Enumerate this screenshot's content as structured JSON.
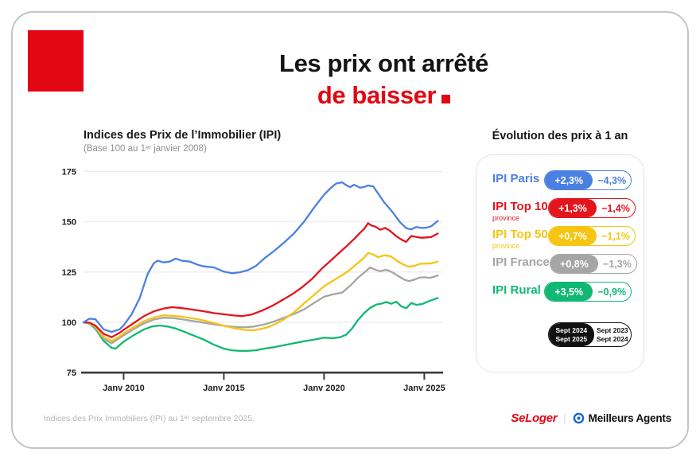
{
  "title": {
    "line1": "Les prix ont arrêté",
    "line2": "de baisser",
    "accent_color": "#e30613"
  },
  "chart_data": {
    "type": "line",
    "title": "Indices des Prix de l’Immobilier (IPI)",
    "subtitle": "(Base 100 au 1ᵉʳ janvier 2008)",
    "grid": true,
    "legend_position": "right-panel",
    "x_axis": {
      "ticks": [
        2010,
        2015,
        2020,
        2025
      ],
      "tick_labels": [
        "Janv 2010",
        "Janv 2015",
        "Janv 2020",
        "Janv 2025"
      ],
      "range": [
        2008,
        2025.75
      ]
    },
    "y_axis": {
      "ticks": [
        175,
        150,
        125,
        100,
        75
      ],
      "range": [
        75,
        180
      ]
    },
    "series": [
      {
        "name": "IPI Paris",
        "color": "#4a80e2",
        "points": [
          [
            2008,
            100
          ],
          [
            2008.3,
            101.8
          ],
          [
            2008.6,
            101.5
          ],
          [
            2009,
            96.5
          ],
          [
            2009.4,
            95.2
          ],
          [
            2009.8,
            96.5
          ],
          [
            2010,
            98.5
          ],
          [
            2010.4,
            104
          ],
          [
            2010.8,
            112
          ],
          [
            2011.2,
            124
          ],
          [
            2011.5,
            129.3
          ],
          [
            2011.7,
            130.6
          ],
          [
            2012,
            129.8
          ],
          [
            2012.3,
            130.2
          ],
          [
            2012.6,
            131.7
          ],
          [
            2012.9,
            130.6
          ],
          [
            2013.3,
            130.2
          ],
          [
            2013.7,
            128.6
          ],
          [
            2014,
            127.8
          ],
          [
            2014.5,
            127.3
          ],
          [
            2015,
            125.2
          ],
          [
            2015.4,
            124.4
          ],
          [
            2015.8,
            124.9
          ],
          [
            2016.2,
            125.9
          ],
          [
            2016.6,
            128
          ],
          [
            2017,
            131.6
          ],
          [
            2017.5,
            135.4
          ],
          [
            2018,
            139.6
          ],
          [
            2018.5,
            144.2
          ],
          [
            2019,
            150
          ],
          [
            2019.5,
            157
          ],
          [
            2020,
            163.4
          ],
          [
            2020.3,
            166.5
          ],
          [
            2020.6,
            169
          ],
          [
            2020.9,
            169.6
          ],
          [
            2021.1,
            168.2
          ],
          [
            2021.3,
            167.2
          ],
          [
            2021.5,
            168.4
          ],
          [
            2021.8,
            166.9
          ],
          [
            2022,
            167.3
          ],
          [
            2022.2,
            168
          ],
          [
            2022.45,
            167.6
          ],
          [
            2022.7,
            164
          ],
          [
            2023,
            159.6
          ],
          [
            2023.4,
            155
          ],
          [
            2023.8,
            149.6
          ],
          [
            2024.1,
            146.8
          ],
          [
            2024.35,
            146.2
          ],
          [
            2024.6,
            147.4
          ],
          [
            2024.85,
            146.9
          ],
          [
            2025.1,
            147
          ],
          [
            2025.35,
            147.8
          ],
          [
            2025.67,
            150.4
          ]
        ]
      },
      {
        "name": "IPI Top 10 province",
        "color": "#e3151d",
        "points": [
          [
            2008,
            100
          ],
          [
            2008.3,
            99.8
          ],
          [
            2008.6,
            98.3
          ],
          [
            2009,
            94.3
          ],
          [
            2009.4,
            92.6
          ],
          [
            2009.8,
            94.8
          ],
          [
            2010,
            96.3
          ],
          [
            2010.5,
            99.6
          ],
          [
            2011,
            103
          ],
          [
            2011.5,
            105.4
          ],
          [
            2012,
            106.9
          ],
          [
            2012.4,
            107.5
          ],
          [
            2012.8,
            107.2
          ],
          [
            2013.2,
            106.7
          ],
          [
            2013.6,
            106.1
          ],
          [
            2014,
            105.5
          ],
          [
            2014.5,
            104.6
          ],
          [
            2015,
            104
          ],
          [
            2015.5,
            103.4
          ],
          [
            2015.9,
            103.1
          ],
          [
            2016.4,
            103.9
          ],
          [
            2016.9,
            105.8
          ],
          [
            2017.4,
            108.1
          ],
          [
            2017.9,
            111
          ],
          [
            2018.4,
            113.9
          ],
          [
            2018.9,
            117.4
          ],
          [
            2019.4,
            121.6
          ],
          [
            2019.9,
            126.8
          ],
          [
            2020.3,
            130.4
          ],
          [
            2020.7,
            134
          ],
          [
            2021.1,
            137.6
          ],
          [
            2021.5,
            141.4
          ],
          [
            2021.8,
            144.6
          ],
          [
            2022,
            146.4
          ],
          [
            2022.2,
            149.3
          ],
          [
            2022.35,
            148.2
          ],
          [
            2022.55,
            147.6
          ],
          [
            2022.8,
            146
          ],
          [
            2023.05,
            146.9
          ],
          [
            2023.3,
            145.4
          ],
          [
            2023.6,
            142.8
          ],
          [
            2023.9,
            140.9
          ],
          [
            2024.1,
            140
          ],
          [
            2024.35,
            142.9
          ],
          [
            2024.6,
            142.4
          ],
          [
            2024.85,
            142
          ],
          [
            2025.1,
            142.2
          ],
          [
            2025.35,
            142.4
          ],
          [
            2025.67,
            144.1
          ]
        ]
      },
      {
        "name": "IPI Top 50 province",
        "color": "#f6c412",
        "points": [
          [
            2008,
            100
          ],
          [
            2008.3,
            99.6
          ],
          [
            2008.6,
            97.8
          ],
          [
            2009,
            92.8
          ],
          [
            2009.4,
            90.7
          ],
          [
            2009.8,
            93
          ],
          [
            2010,
            94.6
          ],
          [
            2010.5,
            97.6
          ],
          [
            2011,
            100.5
          ],
          [
            2011.5,
            102.4
          ],
          [
            2012,
            103.5
          ],
          [
            2012.5,
            103.2
          ],
          [
            2013,
            102.7
          ],
          [
            2013.5,
            101.9
          ],
          [
            2014,
            100.9
          ],
          [
            2014.5,
            99.7
          ],
          [
            2015,
            98.3
          ],
          [
            2015.5,
            97.1
          ],
          [
            2016,
            96.3
          ],
          [
            2016.4,
            96
          ],
          [
            2016.8,
            96.6
          ],
          [
            2017.2,
            97.6
          ],
          [
            2017.6,
            99.3
          ],
          [
            2018,
            101.5
          ],
          [
            2018.5,
            105
          ],
          [
            2019,
            109.4
          ],
          [
            2019.5,
            113.6
          ],
          [
            2020,
            117.9
          ],
          [
            2020.4,
            120.4
          ],
          [
            2020.9,
            123.4
          ],
          [
            2021.3,
            126.2
          ],
          [
            2021.7,
            129.6
          ],
          [
            2022,
            132.2
          ],
          [
            2022.2,
            134.5
          ],
          [
            2022.45,
            133.7
          ],
          [
            2022.7,
            132.4
          ],
          [
            2023,
            133.3
          ],
          [
            2023.3,
            132.9
          ],
          [
            2023.6,
            130.8
          ],
          [
            2023.9,
            129
          ],
          [
            2024.2,
            127.7
          ],
          [
            2024.5,
            128
          ],
          [
            2024.8,
            129.1
          ],
          [
            2025.1,
            129.2
          ],
          [
            2025.35,
            129.3
          ],
          [
            2025.67,
            130.2
          ]
        ]
      },
      {
        "name": "IPI France",
        "color": "#a5a5a5",
        "points": [
          [
            2008,
            100
          ],
          [
            2008.3,
            99.5
          ],
          [
            2008.6,
            97.3
          ],
          [
            2009,
            91.8
          ],
          [
            2009.4,
            89.6
          ],
          [
            2009.8,
            92.2
          ],
          [
            2010,
            93.5
          ],
          [
            2010.5,
            96.6
          ],
          [
            2011,
            99.4
          ],
          [
            2011.5,
            101.4
          ],
          [
            2012,
            102.3
          ],
          [
            2012.5,
            102.1
          ],
          [
            2013,
            101.4
          ],
          [
            2013.5,
            100.6
          ],
          [
            2014,
            99.8
          ],
          [
            2014.5,
            99
          ],
          [
            2015,
            98.3
          ],
          [
            2015.5,
            97.8
          ],
          [
            2016,
            97.5
          ],
          [
            2016.5,
            97.9
          ],
          [
            2017,
            98.9
          ],
          [
            2017.5,
            100.4
          ],
          [
            2018,
            102.3
          ],
          [
            2018.5,
            104.1
          ],
          [
            2019,
            106.4
          ],
          [
            2019.5,
            109.6
          ],
          [
            2020,
            112.7
          ],
          [
            2020.4,
            113.8
          ],
          [
            2020.9,
            114.8
          ],
          [
            2021.3,
            118.2
          ],
          [
            2021.7,
            122.2
          ],
          [
            2022,
            124.7
          ],
          [
            2022.3,
            127.3
          ],
          [
            2022.55,
            126.2
          ],
          [
            2022.8,
            125.4
          ],
          [
            2023.1,
            126.1
          ],
          [
            2023.4,
            124.9
          ],
          [
            2023.7,
            123
          ],
          [
            2024,
            121.2
          ],
          [
            2024.25,
            120.5
          ],
          [
            2024.5,
            121.2
          ],
          [
            2024.75,
            122.2
          ],
          [
            2025,
            122.4
          ],
          [
            2025.3,
            122.1
          ],
          [
            2025.67,
            123.3
          ]
        ]
      },
      {
        "name": "IPI Rural",
        "color": "#10b874",
        "points": [
          [
            2008,
            100
          ],
          [
            2008.3,
            99.3
          ],
          [
            2008.6,
            96.8
          ],
          [
            2009,
            90.8
          ],
          [
            2009.4,
            87.3
          ],
          [
            2009.6,
            86.9
          ],
          [
            2010,
            90.4
          ],
          [
            2010.5,
            93.6
          ],
          [
            2011,
            96.4
          ],
          [
            2011.4,
            97.9
          ],
          [
            2011.8,
            98.4
          ],
          [
            2012.2,
            97.9
          ],
          [
            2012.6,
            96.9
          ],
          [
            2013,
            95.4
          ],
          [
            2013.5,
            93.4
          ],
          [
            2014,
            91.4
          ],
          [
            2014.5,
            88.9
          ],
          [
            2015,
            86.9
          ],
          [
            2015.4,
            86.1
          ],
          [
            2015.8,
            85.8
          ],
          [
            2016.2,
            85.8
          ],
          [
            2016.6,
            86.1
          ],
          [
            2017,
            86.9
          ],
          [
            2017.5,
            87.6
          ],
          [
            2018,
            88.6
          ],
          [
            2018.5,
            89.6
          ],
          [
            2019,
            90.6
          ],
          [
            2019.5,
            91.4
          ],
          [
            2020,
            92.4
          ],
          [
            2020.4,
            92.1
          ],
          [
            2020.8,
            92.6
          ],
          [
            2021.1,
            93.8
          ],
          [
            2021.4,
            97
          ],
          [
            2021.7,
            101.2
          ],
          [
            2022,
            104.6
          ],
          [
            2022.3,
            107.2
          ],
          [
            2022.6,
            108.8
          ],
          [
            2022.9,
            109.4
          ],
          [
            2023.1,
            110.1
          ],
          [
            2023.35,
            109.2
          ],
          [
            2023.6,
            110.3
          ],
          [
            2023.85,
            108
          ],
          [
            2024.1,
            107
          ],
          [
            2024.35,
            109.6
          ],
          [
            2024.6,
            108.7
          ],
          [
            2024.9,
            109.1
          ],
          [
            2025.2,
            110.4
          ],
          [
            2025.67,
            112.1
          ]
        ]
      }
    ]
  },
  "panel": {
    "title": "Évolution des prix à 1 an",
    "rows": [
      {
        "label": "IPI Paris",
        "sub": "",
        "color": "#4a80e2",
        "value_new": "+2,3%",
        "value_old": "−4,3%"
      },
      {
        "label": "IPI Top 10",
        "sub": "province",
        "color": "#e3151d",
        "value_new": "+1,3%",
        "value_old": "−1,4%"
      },
      {
        "label": "IPI Top 50",
        "sub": "province",
        "color": "#f6c412",
        "value_new": "+0,7%",
        "value_old": "−1,1%"
      },
      {
        "label": "IPI France",
        "sub": "",
        "color": "#a5a5a5",
        "value_new": "+0,8%",
        "value_old": "−1,3%"
      },
      {
        "label": "IPI Rural",
        "sub": "",
        "color": "#10b874",
        "value_new": "+3,5%",
        "value_old": "−0,9%"
      }
    ],
    "key": {
      "filled_line1": "Sept 2024",
      "filled_line2": "Sept 2025",
      "outline_line1": "Sept 2023",
      "outline_line2": "Sept 2024"
    }
  },
  "footer": {
    "note": "Indices des Prix Immobiliers (IPI) au 1ᵉʳ septembre 2025.",
    "seloger": "SeLoger",
    "separator": "|",
    "meilleurs_agents": "Meilleurs Agents"
  },
  "colors": {
    "brand_red": "#e30613",
    "ma_blue": "#1464dc",
    "grid": "#ececec",
    "axis": "#3b3b3b"
  }
}
